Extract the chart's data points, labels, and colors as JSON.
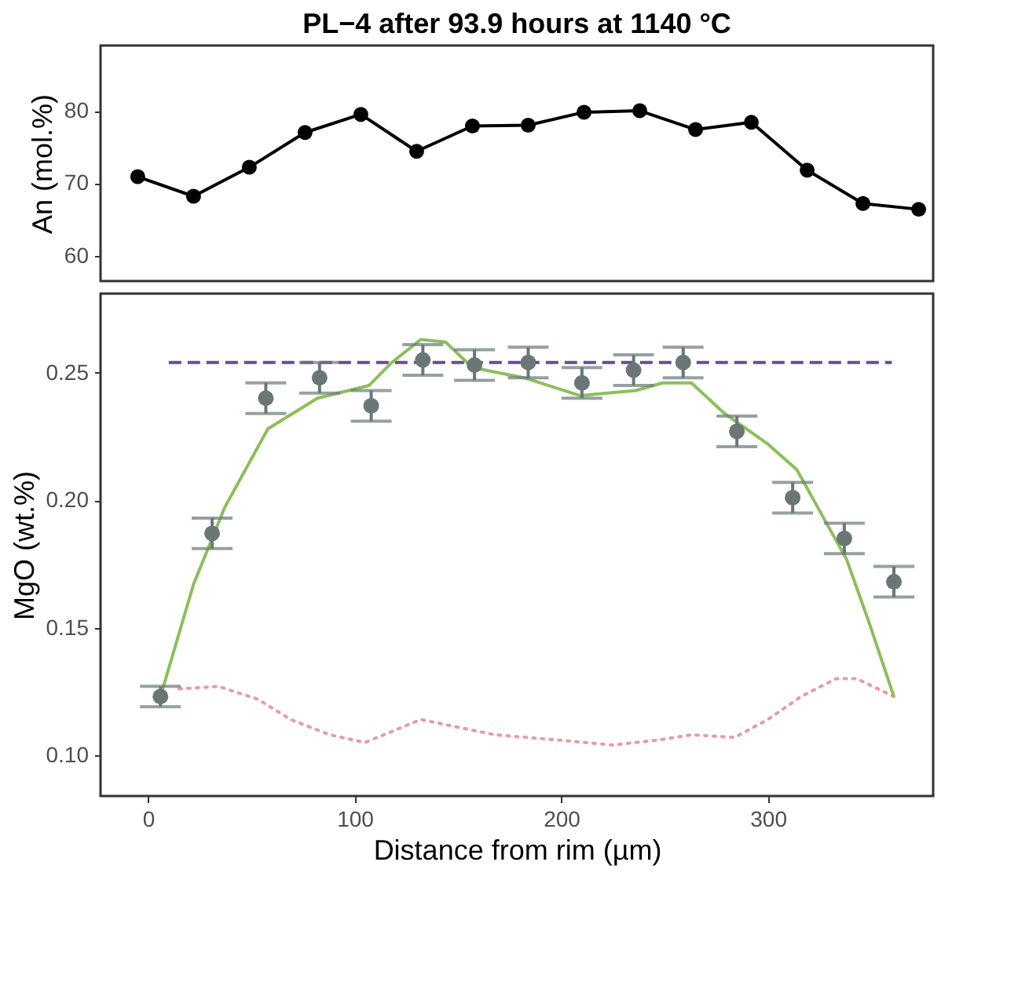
{
  "chart_data": [
    {
      "type": "line",
      "title": "PL−4 after 93.9 hours at 1140 °C",
      "ylabel": "An (mol.%)",
      "marker": "circle",
      "color": "#000000",
      "tick_labels": "y",
      "x": [
        -5,
        22,
        49,
        76,
        103,
        130,
        157,
        184,
        211,
        238,
        265,
        292,
        319,
        346,
        373
      ],
      "values": [
        70.9,
        68.2,
        72.2,
        77,
        79.5,
        74.4,
        77.9,
        78,
        79.8,
        80,
        77.4,
        78.4,
        71.8,
        67.2,
        66.4
      ],
      "xlim": [
        -23,
        380
      ],
      "xticks": [
        0,
        100,
        200,
        300
      ],
      "ylim": [
        56.5,
        89
      ],
      "yticks": [
        60,
        70,
        80
      ]
    },
    {
      "type": "scatter",
      "xlabel": "Distance from rim (µm)",
      "ylabel": "MgO (wt.%)",
      "xlim": [
        -23,
        380
      ],
      "xticks": [
        0,
        100,
        200,
        300
      ],
      "ylim": [
        0.084,
        0.281
      ],
      "yticks": [
        {
          "value": 0.1,
          "label": "0.10"
        },
        0.15,
        {
          "value": 0.2,
          "label": "0.20"
        },
        0.25
      ],
      "series": [
        {
          "type": "line",
          "color": "#e89aa8",
          "line_style": "dotted",
          "x": [
            15,
            34,
            53,
            69,
            88,
            105,
            123,
            132,
            150,
            168,
            198,
            225,
            247,
            263,
            284,
            300,
            316,
            333,
            343,
            361
          ],
          "values": [
            0.126,
            0.127,
            0.122,
            0.114,
            0.108,
            0.105,
            0.111,
            0.114,
            0.111,
            0.108,
            0.106,
            0.104,
            0.106,
            0.108,
            0.107,
            0.114,
            0.123,
            0.13,
            0.13,
            0.123
          ]
        },
        {
          "type": "line",
          "color": "#6a4c93",
          "line_style": "dashed",
          "x": [
            10,
            360
          ],
          "values": [
            0.254,
            0.254
          ]
        },
        {
          "type": "line",
          "color": "#8cbf5a",
          "line_style": "solid",
          "x": [
            6,
            22,
            37,
            58,
            82,
            107,
            118,
            132,
            144,
            157,
            182,
            209,
            236,
            249,
            263,
            279,
            300,
            314,
            327,
            338,
            349,
            361
          ],
          "values": [
            0.123,
            0.167,
            0.197,
            0.228,
            0.24,
            0.245,
            0.254,
            0.263,
            0.262,
            0.252,
            0.248,
            0.241,
            0.243,
            0.246,
            0.246,
            0.234,
            0.222,
            0.212,
            0.193,
            0.177,
            0.152,
            0.123
          ]
        },
        {
          "color": "#6b7777",
          "marker": "circle",
          "x": [
            6,
            31,
            57,
            83,
            108,
            133,
            158,
            184,
            210,
            235,
            259,
            285,
            312,
            337,
            361
          ],
          "values": [
            0.123,
            0.187,
            0.24,
            0.248,
            0.237,
            0.255,
            0.253,
            0.254,
            0.246,
            0.251,
            0.254,
            0.227,
            0.201,
            0.185,
            0.168
          ],
          "errors": [
            0.004,
            0.006,
            0.006,
            0.006,
            0.006,
            0.006,
            0.006,
            0.006,
            0.006,
            0.006,
            0.006,
            0.006,
            0.006,
            0.006,
            0.006
          ]
        }
      ]
    }
  ]
}
